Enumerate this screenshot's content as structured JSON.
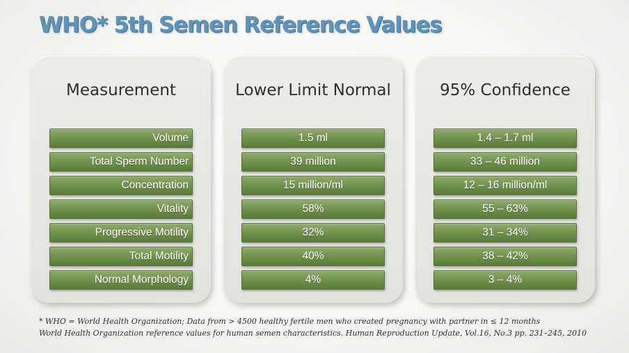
{
  "title": "WHO* 5th Semen Reference Values",
  "columns": {
    "measurement": {
      "header": "Measurement",
      "rows": [
        "Volume",
        "Total Sperm Number",
        "Concentration",
        "Vitality",
        "Progressive Motility",
        "Total Motility",
        "Normal Morphology"
      ]
    },
    "lower_limit": {
      "header": "Lower Limit Normal",
      "rows": [
        "1.5 ml",
        "39 million",
        "15 million/ml",
        "58%",
        "32%",
        "40%",
        "4%"
      ]
    },
    "confidence": {
      "header": "95% Confidence",
      "rows": [
        "1.4 – 1.7 ml",
        "33 – 46 million",
        "12 – 16 million/ml",
        "55 – 63%",
        "31 – 34%",
        "38 – 42%",
        "3 – 4%"
      ]
    }
  },
  "footnote": {
    "line1": "* WHO = World Health Organization; Data from > 4500 healthy fertile men who created pregnancy with partner in ≤ 12 months",
    "line2": "World Health Organization reference values for human semen characteristics. Human Reproduction Update, Vol.16, No.3 pp. 231–245, 2010"
  },
  "colors": {
    "title": "#5f93b7",
    "bar": "#6f8f4b",
    "panel": "#e6e6e3"
  }
}
